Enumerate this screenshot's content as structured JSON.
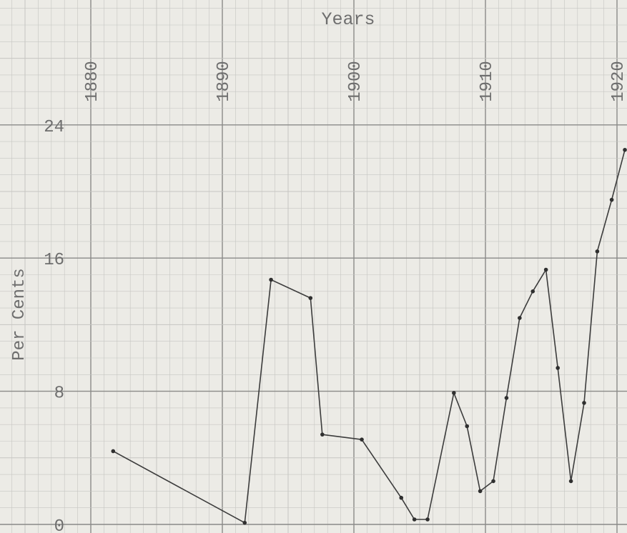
{
  "chart_data": {
    "type": "line",
    "title": "",
    "xlabel": "Years",
    "ylabel": "Per Cents",
    "x_ticks": [
      "1880",
      "1890",
      "1900",
      "1910",
      "1920"
    ],
    "y_ticks": [
      "0",
      "8",
      "16",
      "24"
    ],
    "xlim": [
      1878,
      1920.6
    ],
    "ylim": [
      -0.3,
      26.5
    ],
    "grid": true,
    "series": [
      {
        "x": [
          1881.7,
          1891.7,
          1893.7,
          1896.7,
          1897.6,
          1900.6,
          1903.6,
          1904.6,
          1905.6,
          1907.6,
          1908.6,
          1909.6,
          1910.6,
          1911.6,
          1912.6,
          1913.6,
          1914.6,
          1915.5,
          1916.5,
          1917.5,
          1918.5,
          1919.6,
          1920.6
        ],
        "y": [
          4.4,
          0.1,
          14.7,
          13.6,
          5.4,
          5.1,
          1.6,
          0.3,
          0.3,
          7.9,
          5.9,
          2.0,
          2.6,
          7.6,
          12.4,
          14.0,
          15.3,
          9.4,
          2.6,
          7.3,
          16.4,
          19.5,
          22.5
        ]
      }
    ],
    "colors": {
      "paper": "#ecebe6",
      "minor_grid": "#c6c6c2",
      "major_grid": "#8a8a88",
      "line": "#3c3c3c",
      "text": "#6e6e6e"
    }
  }
}
